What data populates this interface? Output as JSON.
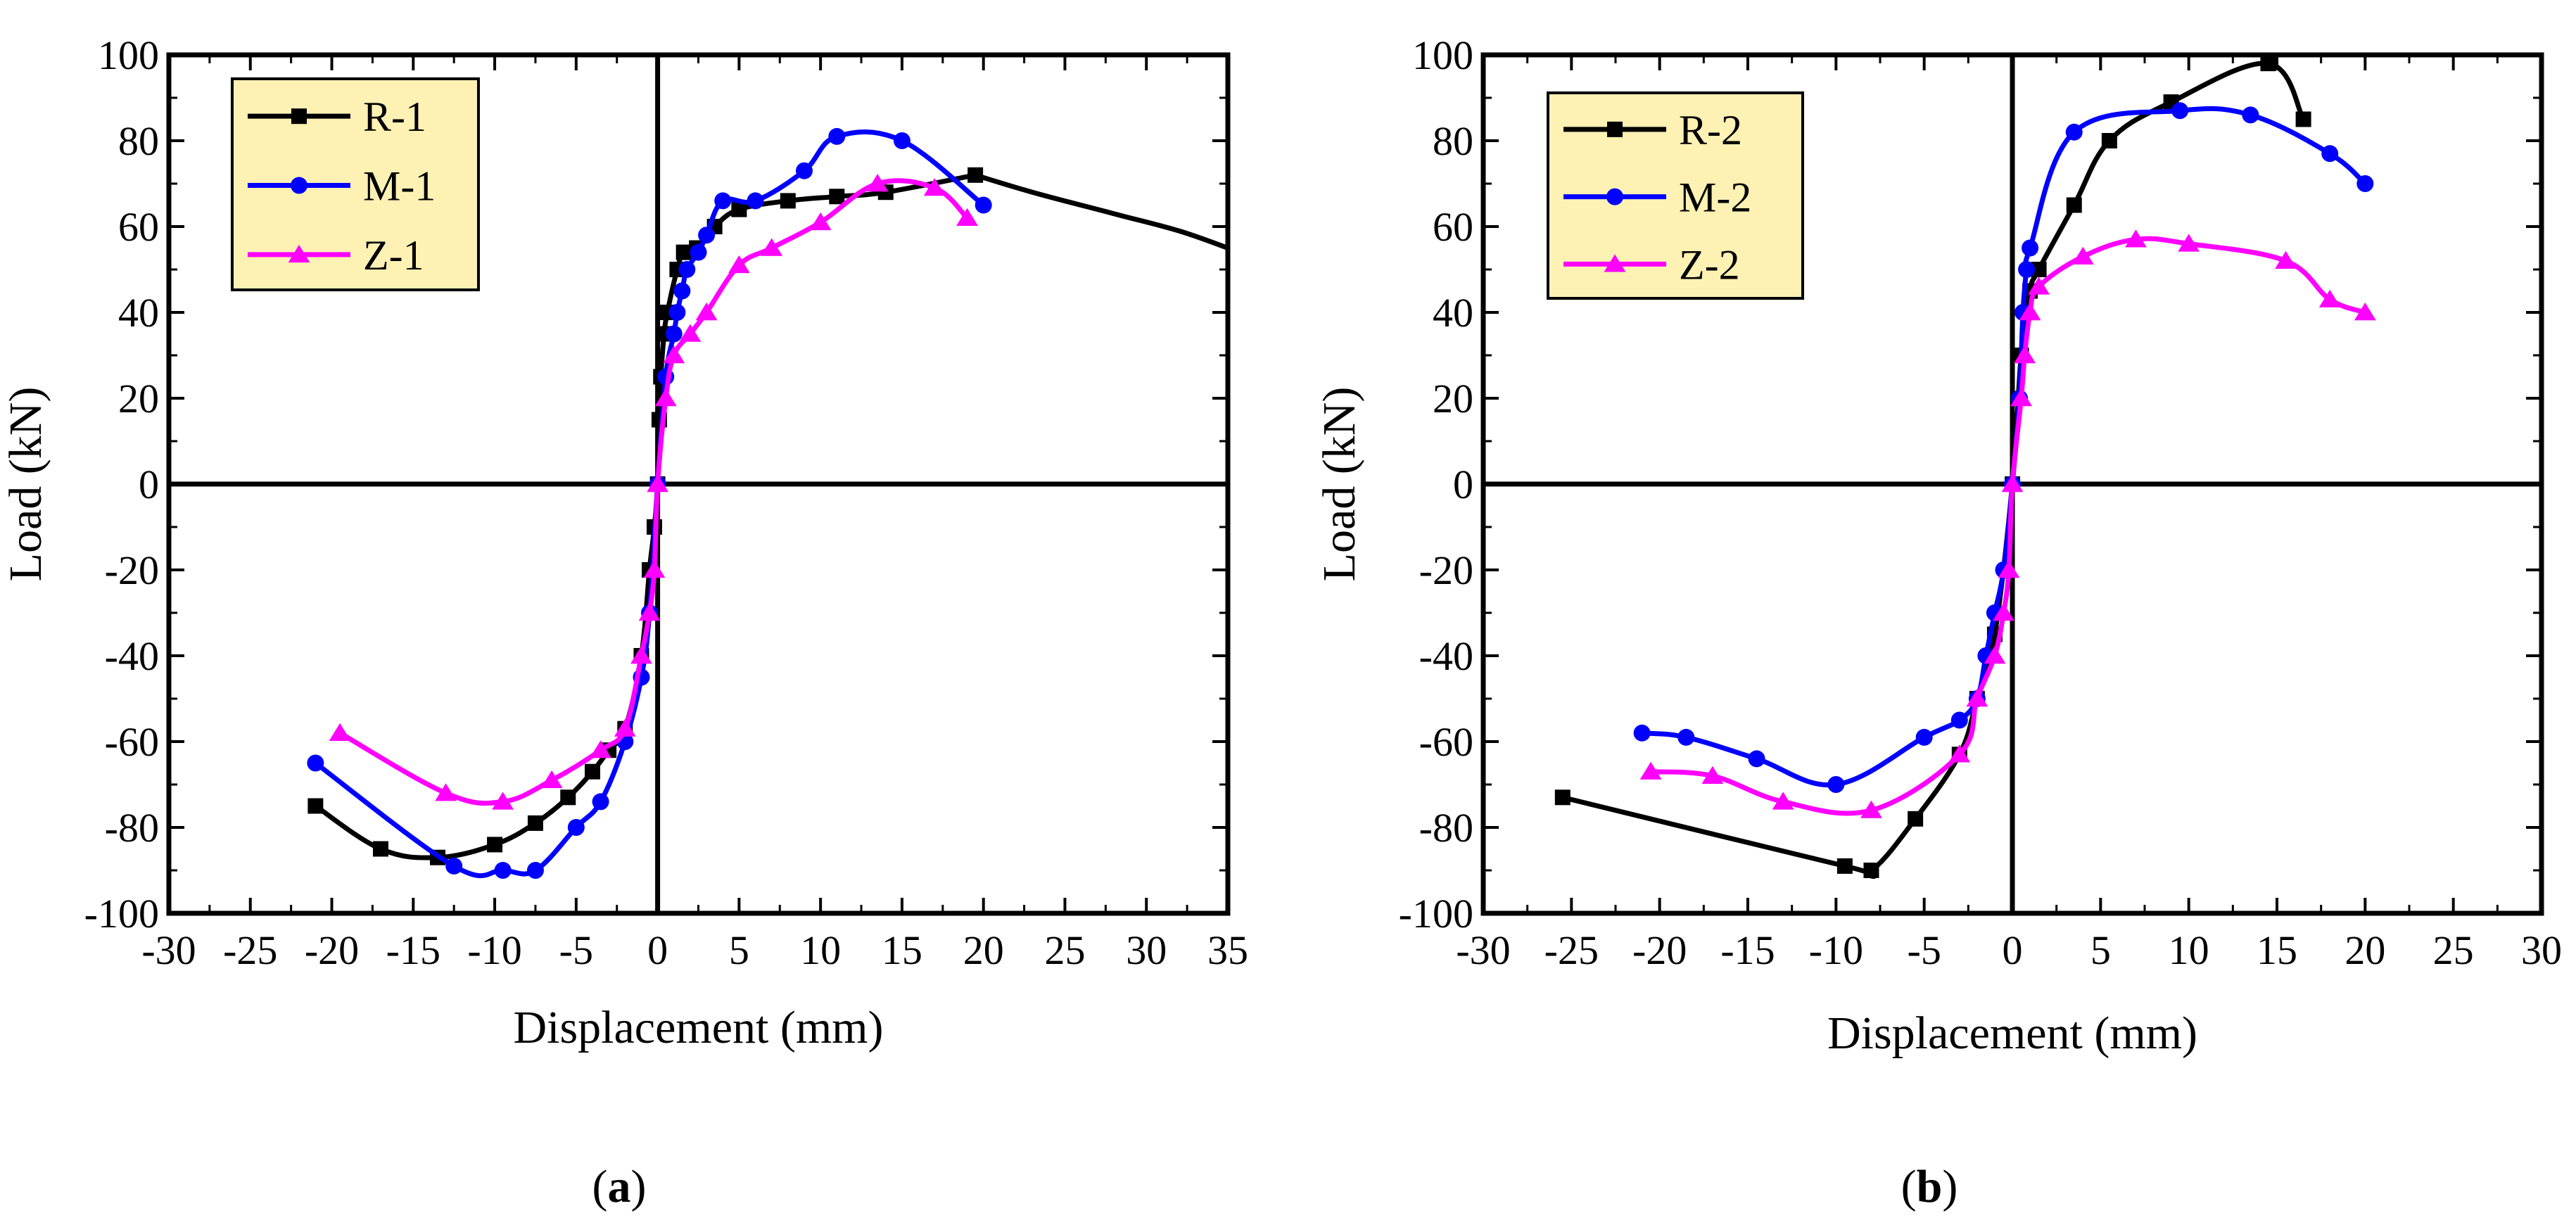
{
  "chart_data": [
    {
      "type": "line",
      "panel_label": "a",
      "xlabel": "Displacement (mm)",
      "ylabel": "Load (kN)",
      "xlim": [
        -30,
        35
      ],
      "ylim": [
        -100,
        100
      ],
      "xticks": [
        -30,
        -25,
        -20,
        -15,
        -10,
        -5,
        0,
        5,
        10,
        15,
        20,
        25,
        30,
        35
      ],
      "yticks": [
        -100,
        -80,
        -60,
        -40,
        -20,
        0,
        20,
        40,
        60,
        80,
        100
      ],
      "legend_position": "top-left",
      "series": [
        {
          "name": "R-1",
          "color": "#000000",
          "marker": "square",
          "points": [
            [
              -21,
              -75
            ],
            [
              -17,
              -85
            ],
            [
              -13.5,
              -87
            ],
            [
              -10,
              -84
            ],
            [
              -7.5,
              -79
            ],
            [
              -5.5,
              -73
            ],
            [
              -4,
              -67
            ],
            [
              -3,
              -62
            ],
            [
              -2,
              -57
            ],
            [
              -1,
              -40
            ],
            [
              -0.5,
              -20
            ],
            [
              -0.2,
              -10
            ],
            [
              0,
              0
            ],
            [
              0.1,
              15
            ],
            [
              0.2,
              25
            ],
            [
              0.4,
              35
            ],
            [
              0.6,
              40
            ],
            [
              1.2,
              50
            ],
            [
              1.6,
              54
            ],
            [
              2.4,
              55
            ],
            [
              3.5,
              60
            ],
            [
              5,
              64
            ],
            [
              8,
              66
            ],
            [
              11,
              67
            ],
            [
              14,
              68
            ],
            [
              19.5,
              72
            ]
          ],
          "tail": [
            [
              19.5,
              72
            ],
            [
              23,
              68
            ],
            [
              28,
              63
            ],
            [
              32,
              59
            ],
            [
              35,
              55
            ]
          ]
        },
        {
          "name": "M-1",
          "color": "#0000ff",
          "marker": "circle",
          "points": [
            [
              -21,
              -65
            ],
            [
              -12.5,
              -89
            ],
            [
              -9.5,
              -90
            ],
            [
              -7.5,
              -90
            ],
            [
              -5,
              -80
            ],
            [
              -3.5,
              -74
            ],
            [
              -2,
              -60
            ],
            [
              -1,
              -45
            ],
            [
              -0.5,
              -30
            ],
            [
              0,
              0
            ],
            [
              0.5,
              25
            ],
            [
              1,
              35
            ],
            [
              1.2,
              40
            ],
            [
              1.5,
              45
            ],
            [
              1.8,
              50
            ],
            [
              2.5,
              54
            ],
            [
              3,
              58
            ],
            [
              4,
              66
            ],
            [
              6,
              66
            ],
            [
              9,
              73
            ],
            [
              11,
              81
            ],
            [
              15,
              80
            ],
            [
              20,
              65
            ]
          ]
        },
        {
          "name": "Z-1",
          "color": "#ff00ff",
          "marker": "triangle",
          "points": [
            [
              -19.5,
              -58
            ],
            [
              -13,
              -72
            ],
            [
              -9.5,
              -74
            ],
            [
              -6.5,
              -69
            ],
            [
              -3.5,
              -62
            ],
            [
              -2,
              -57
            ],
            [
              -1,
              -40
            ],
            [
              -0.5,
              -30
            ],
            [
              -0.2,
              -20
            ],
            [
              0,
              0
            ],
            [
              0.5,
              20
            ],
            [
              1,
              30
            ],
            [
              2,
              35
            ],
            [
              3,
              40
            ],
            [
              5,
              51
            ],
            [
              7,
              55
            ],
            [
              10,
              61
            ],
            [
              13.5,
              70
            ],
            [
              17,
              69
            ],
            [
              19,
              62
            ]
          ]
        }
      ]
    },
    {
      "type": "line",
      "panel_label": "b",
      "xlabel": "Displacement (mm)",
      "ylabel": "Load (kN)",
      "xlim": [
        -30,
        30
      ],
      "ylim": [
        -100,
        100
      ],
      "xticks": [
        -30,
        -25,
        -20,
        -15,
        -10,
        -5,
        0,
        5,
        10,
        15,
        20,
        25,
        30
      ],
      "yticks": [
        -100,
        -80,
        -60,
        -40,
        -20,
        0,
        20,
        40,
        60,
        80,
        100
      ],
      "legend_position": "top-left",
      "series": [
        {
          "name": "R-2",
          "color": "#000000",
          "marker": "square",
          "points": [
            [
              -25.5,
              -73
            ],
            [
              -9.5,
              -89
            ],
            [
              -8,
              -90
            ],
            [
              -5.5,
              -78
            ],
            [
              -3,
              -63
            ],
            [
              -2,
              -50
            ],
            [
              -1,
              -35
            ],
            [
              0,
              0
            ],
            [
              0.5,
              30
            ],
            [
              1,
              45
            ],
            [
              1.5,
              50
            ],
            [
              3.5,
              65
            ],
            [
              5.5,
              80
            ],
            [
              9,
              89
            ],
            [
              14.5,
              98
            ],
            [
              16.5,
              85
            ]
          ]
        },
        {
          "name": "M-2",
          "color": "#0000ff",
          "marker": "circle",
          "points": [
            [
              -21,
              -58
            ],
            [
              -18.5,
              -59
            ],
            [
              -14.5,
              -64
            ],
            [
              -10,
              -70
            ],
            [
              -5,
              -59
            ],
            [
              -3,
              -55
            ],
            [
              -2,
              -50
            ],
            [
              -1.5,
              -40
            ],
            [
              -1,
              -30
            ],
            [
              -0.5,
              -20
            ],
            [
              0,
              0
            ],
            [
              0.4,
              20
            ],
            [
              0.6,
              40
            ],
            [
              0.8,
              50
            ],
            [
              1,
              55
            ],
            [
              3.5,
              82
            ],
            [
              9.5,
              87
            ],
            [
              13.5,
              86
            ],
            [
              18,
              77
            ],
            [
              20,
              70
            ]
          ]
        },
        {
          "name": "Z-2",
          "color": "#ff00ff",
          "marker": "triangle",
          "points": [
            [
              -20.5,
              -67
            ],
            [
              -17,
              -68
            ],
            [
              -13,
              -74
            ],
            [
              -8,
              -76
            ],
            [
              -3,
              -63
            ],
            [
              -2,
              -50
            ],
            [
              -1,
              -40
            ],
            [
              -0.5,
              -30
            ],
            [
              -0.2,
              -20
            ],
            [
              0,
              0
            ],
            [
              0.5,
              20
            ],
            [
              0.7,
              30
            ],
            [
              1,
              40
            ],
            [
              1.5,
              46
            ],
            [
              4,
              53
            ],
            [
              7,
              57
            ],
            [
              10,
              56
            ],
            [
              15.5,
              52
            ],
            [
              18,
              43
            ],
            [
              20,
              40
            ]
          ]
        }
      ]
    }
  ]
}
